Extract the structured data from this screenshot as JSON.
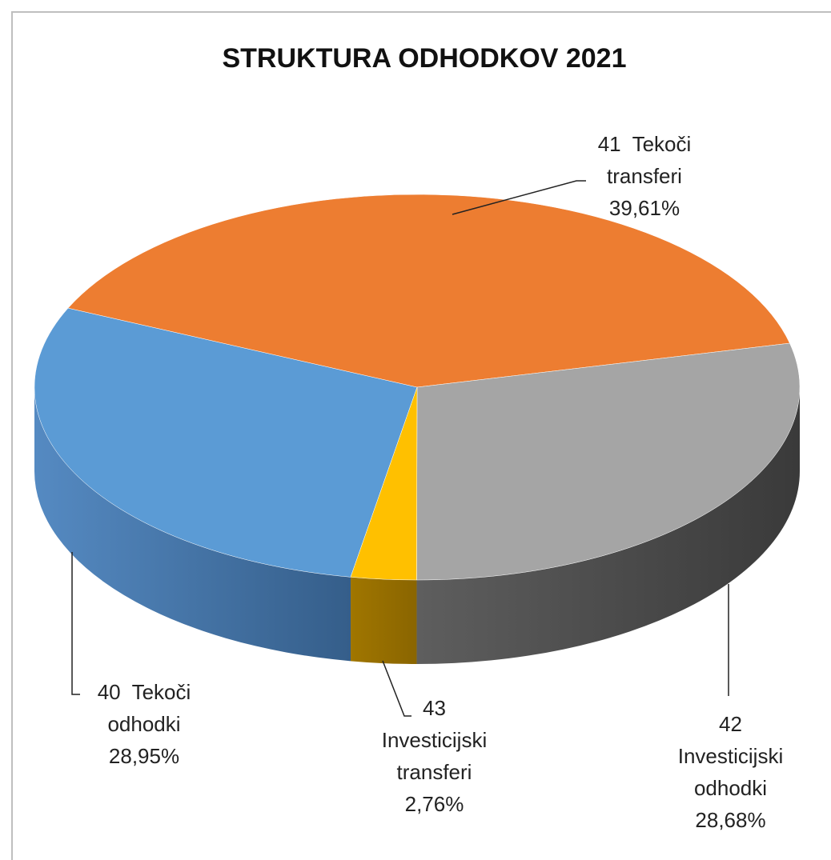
{
  "chart_data": {
    "type": "pie3d",
    "title": "STRUKTURA ODHODKOV 2021",
    "categories": [
      "40  Tekoči odhodki",
      "41  Tekoči transferi",
      "42 Investicijski odhodki",
      "43 Investicijski transferi"
    ],
    "values": [
      28.95,
      39.61,
      28.68,
      2.76
    ],
    "value_labels": [
      "28,95%",
      "39,61%",
      "28,68%",
      "2,76%"
    ],
    "colors": [
      "#5b9bd5",
      "#ed7d31",
      "#a5a5a5",
      "#ffc000"
    ]
  }
}
